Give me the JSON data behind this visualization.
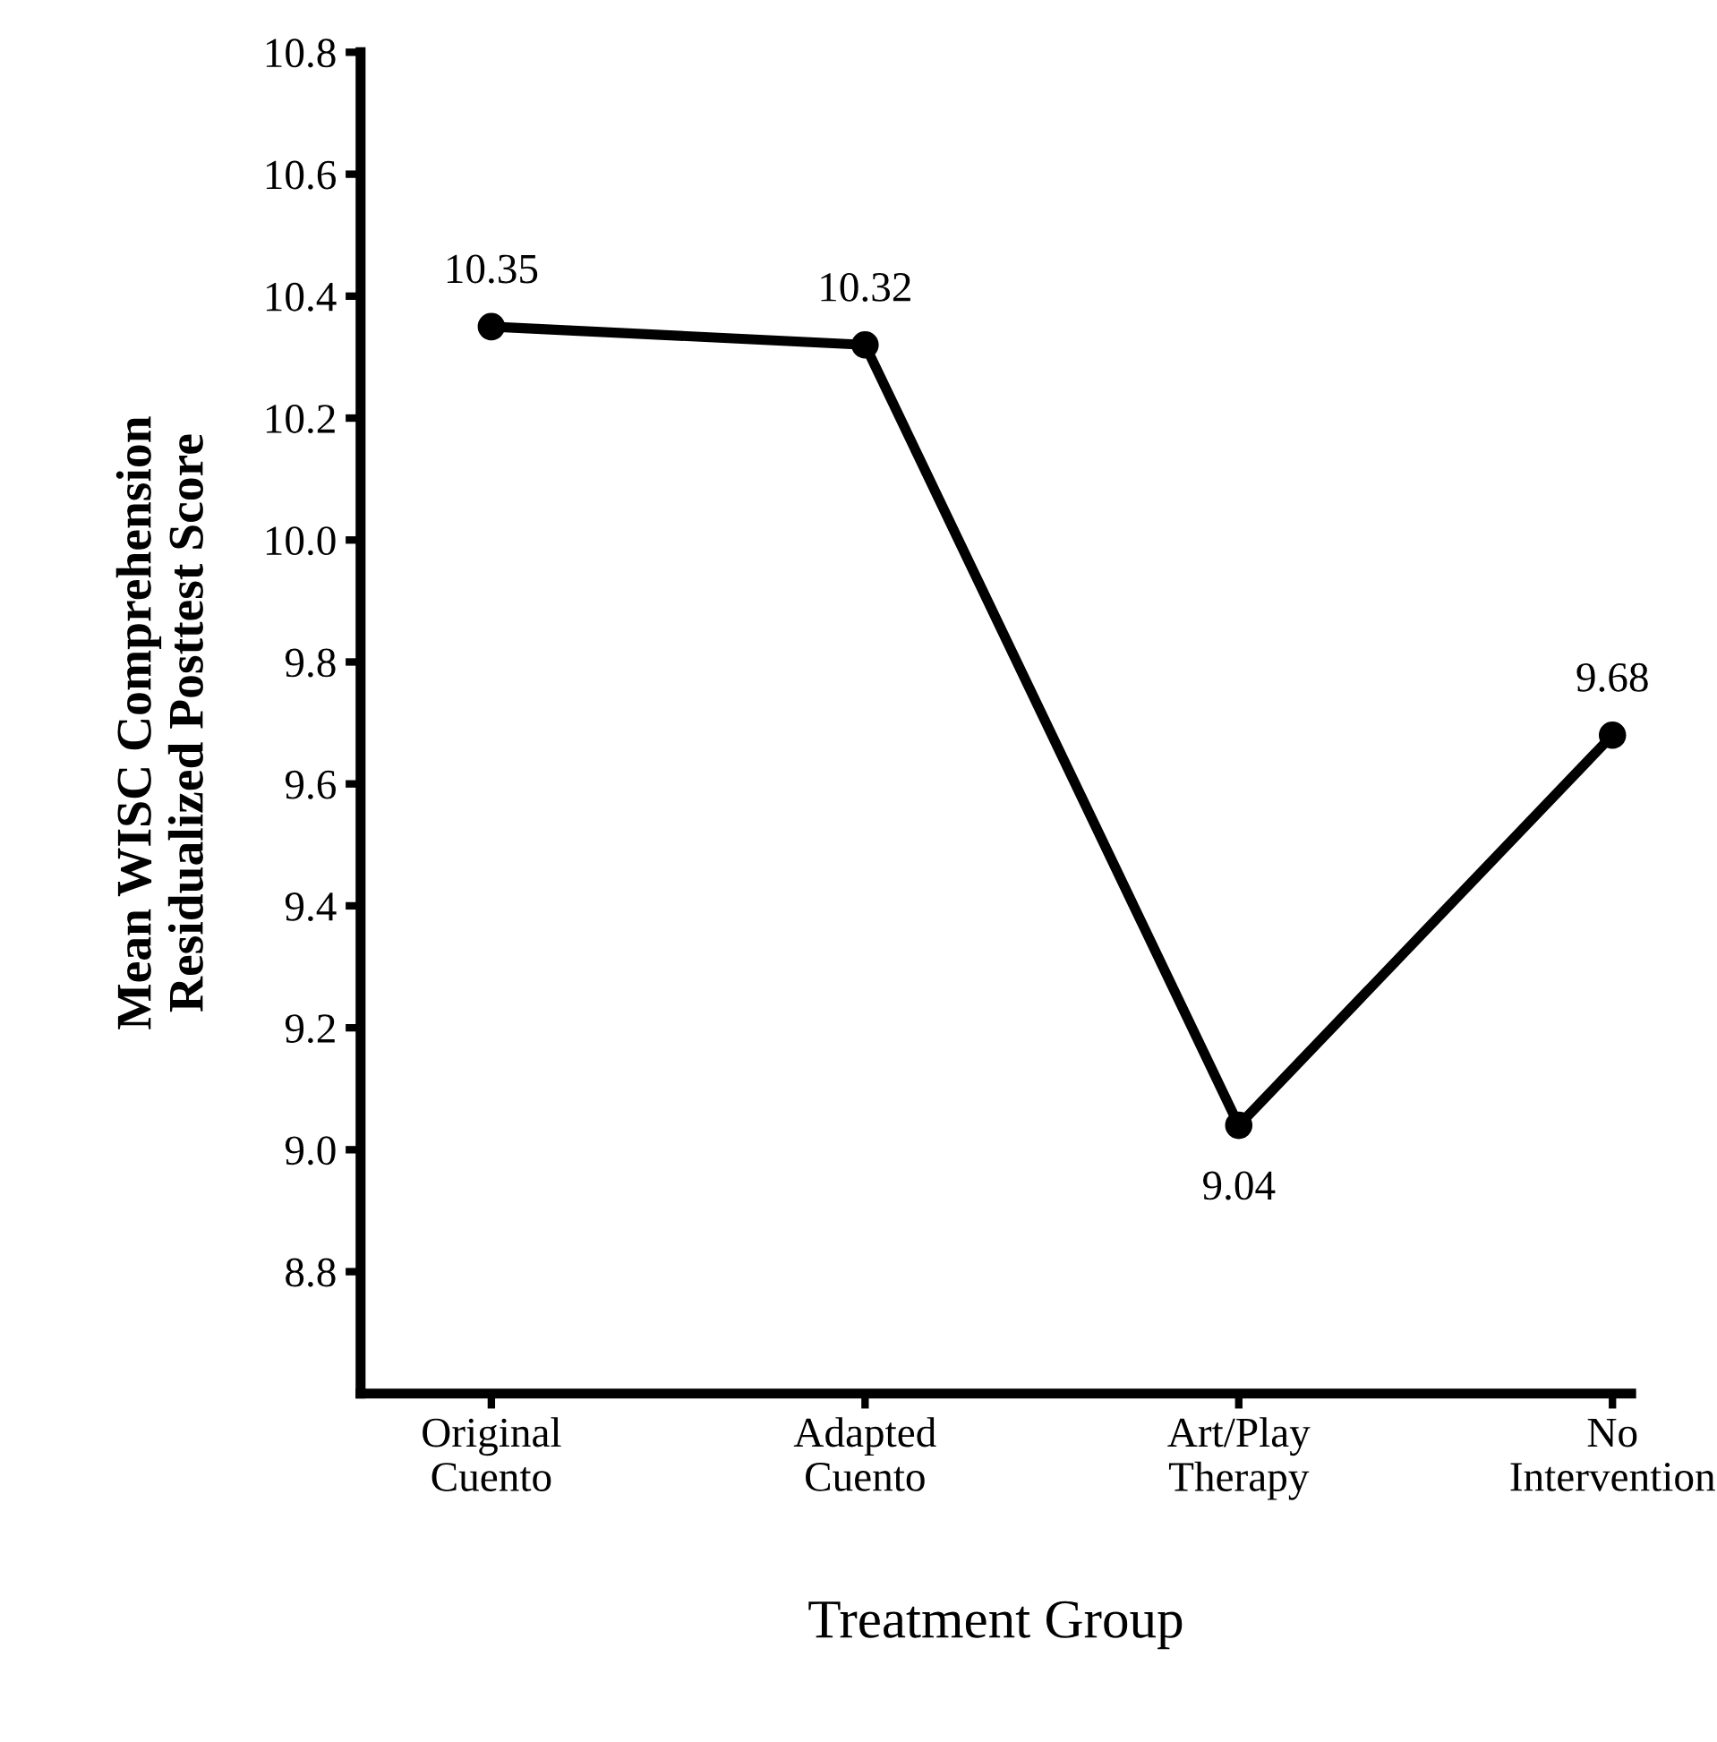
{
  "chart_data": {
    "type": "line",
    "xlabel": "Treatment Group",
    "ylabel": "Mean WISC Comprehension\nResidualized Posttest Score",
    "categories": [
      "Original\nCuento",
      "Adapted\nCuento",
      "Art/Play\nTherapy",
      "No\nIntervention"
    ],
    "series": [
      {
        "color": "#000000",
        "values": [
          10.35,
          10.32,
          9.04,
          9.68
        ]
      }
    ],
    "ylim": [
      8.6,
      10.8
    ],
    "yticks": [
      8.8,
      {
        "value": 9,
        "label": "9.0"
      },
      9.2,
      9.4,
      9.6,
      9.8,
      {
        "value": 10,
        "label": "10.0"
      },
      10.2,
      10.4,
      10.6,
      10.8
    ],
    "data_labels": true,
    "marker": "circle",
    "line_style": "solid"
  }
}
